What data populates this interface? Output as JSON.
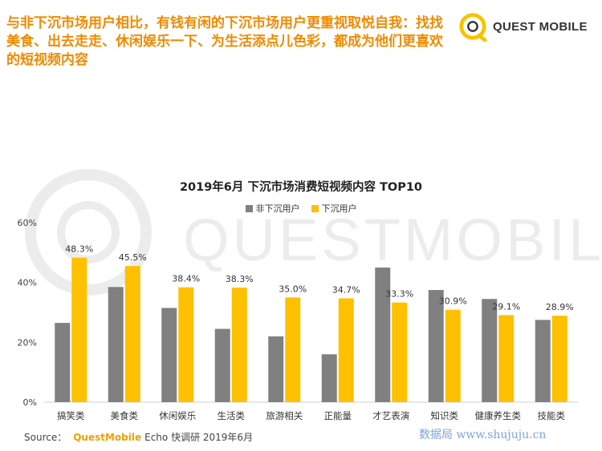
{
  "headline": "与非下沉市场用户相比，有钱有闲的下沉市场用户更重视取悦自我：找找美食、出去走走、休闲娱乐一下、为生活添点儿色彩，都成为他们更喜欢的短视频内容",
  "logo": {
    "text": "QUEST MOBILE",
    "watermark_text": "QUESTMOBILE"
  },
  "source": {
    "label": "Source：",
    "brand": "QuestMobile",
    "rest": "Echo 快调研 2019年6月"
  },
  "credit": "数据局  www.shujuju.cn",
  "colors": {
    "accent": "#f08a00",
    "gray_series": "#808080",
    "yellow_series": "#ffc000"
  },
  "chart_data": {
    "type": "bar",
    "title": "2019年6月 下沉市场消费短视频内容 TOP10",
    "categories": [
      "搞笑类",
      "美食类",
      "休闲娱乐",
      "生活类",
      "旅游相关",
      "正能量",
      "才艺表演",
      "知识类",
      "健康养生类",
      "技能类"
    ],
    "series": [
      {
        "name": "非下沉用户",
        "color": "#808080",
        "values": [
          26.5,
          38.5,
          31.5,
          24.5,
          22.0,
          16.0,
          45.0,
          37.5,
          34.5,
          27.5
        ],
        "labels": [
          "",
          "",
          "",
          "",
          "",
          "",
          "",
          "",
          "",
          ""
        ]
      },
      {
        "name": "下沉用户",
        "color": "#ffc000",
        "values": [
          48.3,
          45.5,
          38.4,
          38.3,
          35.0,
          34.7,
          33.3,
          30.9,
          29.1,
          28.9
        ],
        "labels": [
          "48.3%",
          "45.5%",
          "38.4%",
          "38.3%",
          "35.0%",
          "34.7%",
          "33.3%",
          "30.9%",
          "29.1%",
          "28.9%"
        ]
      }
    ],
    "yticks": [
      "0%",
      "20%",
      "40%",
      "60%"
    ],
    "ylim": [
      0,
      60
    ],
    "legend": "top-center",
    "grid": false
  }
}
